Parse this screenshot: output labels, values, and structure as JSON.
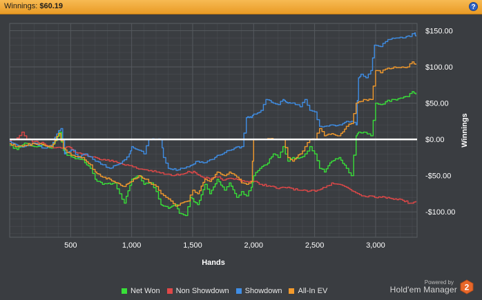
{
  "header": {
    "label": "Winnings:",
    "value": "$60.19",
    "help_glyph": "?"
  },
  "branding": {
    "powered_by": "Powered by",
    "product": "Hold'em Manager",
    "version_badge": "2"
  },
  "colors": {
    "background": "#3a3d41",
    "grid": "#55595e",
    "zero_line": "#ffffff",
    "net_won": "#38e038",
    "non_showdown": "#e04848",
    "showdown": "#3f8ee6",
    "all_in_ev": "#f39a2c",
    "header": "#f0a83a"
  },
  "chart_data": {
    "type": "line",
    "title": "",
    "xlabel": "Hands",
    "ylabel": "Winnings",
    "xlim": [
      0,
      3340
    ],
    "ylim": [
      -135,
      160
    ],
    "x_ticks": [
      500,
      1000,
      1500,
      2000,
      2500,
      3000
    ],
    "x_tick_labels": [
      "500",
      "1,000",
      "1,500",
      "2,000",
      "2,500",
      "3,000"
    ],
    "y_ticks": [
      150,
      100,
      50,
      0,
      -50,
      -100
    ],
    "y_tick_labels": [
      "$150.00",
      "$100.00",
      "$50.00",
      "$0.00",
      "-$50.00",
      "-$100.00"
    ],
    "grid": true,
    "legend_position": "bottom",
    "series": [
      {
        "name": "Net Won",
        "color_key": "net_won",
        "x": [
          0,
          60,
          120,
          200,
          280,
          340,
          410,
          440,
          470,
          520,
          600,
          660,
          700,
          760,
          860,
          900,
          940,
          1000,
          1060,
          1100,
          1160,
          1200,
          1240,
          1260,
          1300,
          1360,
          1390,
          1440,
          1480,
          1540,
          1600,
          1640,
          1700,
          1760,
          1800,
          1860,
          1900,
          1940,
          1980,
          2000,
          2050,
          2100,
          2160,
          2200,
          2240,
          2280,
          2320,
          2380,
          2420,
          2460,
          2500,
          2540,
          2580,
          2640,
          2700,
          2760,
          2800,
          2840,
          2860,
          2900,
          2960,
          3000,
          3040,
          3080,
          3150,
          3200,
          3260,
          3300,
          3330
        ],
        "values": [
          -8,
          -14,
          -5,
          -10,
          -8,
          -12,
          10,
          -15,
          -22,
          -25,
          -28,
          -40,
          -55,
          -62,
          -60,
          -75,
          -88,
          -55,
          -50,
          -62,
          -60,
          -72,
          -90,
          -92,
          -95,
          -90,
          -102,
          -105,
          -80,
          -90,
          -62,
          -75,
          -55,
          -70,
          -60,
          -80,
          -72,
          -78,
          -66,
          -50,
          -40,
          -35,
          -20,
          -25,
          -10,
          -30,
          -25,
          -25,
          -20,
          -10,
          -20,
          -40,
          -45,
          -30,
          -25,
          -40,
          -50,
          5,
          10,
          10,
          5,
          50,
          48,
          52,
          55,
          57,
          59,
          66,
          62
        ]
      },
      {
        "name": "Non Showdown",
        "color_key": "non_showdown",
        "x": [
          0,
          60,
          100,
          140,
          200,
          280,
          340,
          420,
          480,
          540,
          600,
          660,
          720,
          800,
          880,
          960,
          1040,
          1120,
          1200,
          1280,
          1340,
          1400,
          1460,
          1520,
          1580,
          1640,
          1700,
          1760,
          1820,
          1880,
          1940,
          2000,
          2060,
          2120,
          2200,
          2280,
          2360,
          2440,
          2520,
          2600,
          2640,
          2700,
          2760,
          2820,
          2900,
          2960,
          3040,
          3100,
          3160,
          3220,
          3280,
          3330
        ],
        "values": [
          -2,
          2,
          10,
          0,
          -3,
          -6,
          -10,
          -12,
          -10,
          -18,
          -20,
          -24,
          -26,
          -28,
          -32,
          -35,
          -40,
          -42,
          -45,
          -48,
          -50,
          -48,
          -44,
          -46,
          -52,
          -55,
          -52,
          -56,
          -54,
          -56,
          -58,
          -58,
          -62,
          -64,
          -68,
          -66,
          -70,
          -72,
          -70,
          -64,
          -60,
          -62,
          -66,
          -72,
          -78,
          -78,
          -80,
          -80,
          -82,
          -84,
          -88,
          -85
        ]
      },
      {
        "name": "Showdown",
        "color_key": "showdown",
        "x": [
          0,
          60,
          120,
          200,
          280,
          340,
          400,
          420,
          450,
          470,
          520,
          560,
          620,
          660,
          700,
          760,
          820,
          880,
          940,
          980,
          1000,
          1060,
          1100,
          1140,
          1200,
          1240,
          1260,
          1300,
          1380,
          1420,
          1480,
          1540,
          1600,
          1640,
          1680,
          1700,
          1760,
          1800,
          1840,
          1900,
          1940,
          1960,
          1980,
          2000,
          2060,
          2100,
          2160,
          2200,
          2240,
          2260,
          2280,
          2300,
          2340,
          2380,
          2420,
          2460,
          2500,
          2540,
          2580,
          2640,
          2700,
          2760,
          2800,
          2840,
          2860,
          2880,
          2920,
          2960,
          2990,
          3040,
          3080,
          3120,
          3180,
          3220,
          3280,
          3320,
          3330
        ],
        "values": [
          -3,
          -8,
          -10,
          -5,
          -12,
          -8,
          12,
          15,
          -20,
          -18,
          -15,
          -25,
          -20,
          -24,
          -30,
          -35,
          -40,
          -35,
          -28,
          -20,
          -10,
          -15,
          -20,
          0,
          0,
          0,
          -25,
          -40,
          -42,
          -40,
          -36,
          -30,
          -32,
          -28,
          -25,
          -22,
          -18,
          -15,
          -12,
          -10,
          30,
          30,
          30,
          35,
          40,
          55,
          50,
          48,
          55,
          52,
          50,
          50,
          48,
          45,
          55,
          40,
          38,
          18,
          18,
          20,
          20,
          25,
          25,
          20,
          85,
          90,
          85,
          95,
          130,
          128,
          135,
          138,
          140,
          140,
          142,
          147,
          142
        ]
      },
      {
        "name": "All-In EV",
        "color_key": "all_in_ev",
        "x": [
          0,
          60,
          120,
          200,
          280,
          340,
          400,
          440,
          470,
          520,
          600,
          660,
          700,
          760,
          820,
          880,
          940,
          1000,
          1060,
          1120,
          1160,
          1200,
          1240,
          1280,
          1320,
          1360,
          1400,
          1460,
          1500,
          1540,
          1600,
          1640,
          1700,
          1760,
          1800,
          1860,
          1900,
          1940,
          1980,
          2000,
          2060,
          2100,
          2160,
          2200,
          2240,
          2280,
          2320,
          2380,
          2420,
          2460,
          2500,
          2540,
          2580,
          2640,
          2700,
          2760,
          2800,
          2840,
          2860,
          2900,
          2960,
          3000,
          3040,
          3080,
          3150,
          3200,
          3260,
          3300,
          3330
        ],
        "values": [
          -6,
          -10,
          -8,
          -6,
          -8,
          -10,
          8,
          -12,
          -18,
          -22,
          -25,
          -35,
          -45,
          -52,
          -55,
          -60,
          -65,
          -58,
          -50,
          -55,
          -62,
          -65,
          -75,
          -80,
          -85,
          -92,
          -88,
          -85,
          -70,
          -75,
          -55,
          -58,
          -45,
          -50,
          -45,
          -52,
          -60,
          -62,
          -58,
          0,
          0,
          0,
          0,
          0,
          0,
          -25,
          -30,
          -20,
          -10,
          0,
          0,
          15,
          5,
          8,
          5,
          18,
          22,
          50,
          52,
          55,
          55,
          95,
          92,
          97,
          100,
          99,
          100,
          107,
          103
        ]
      }
    ]
  }
}
